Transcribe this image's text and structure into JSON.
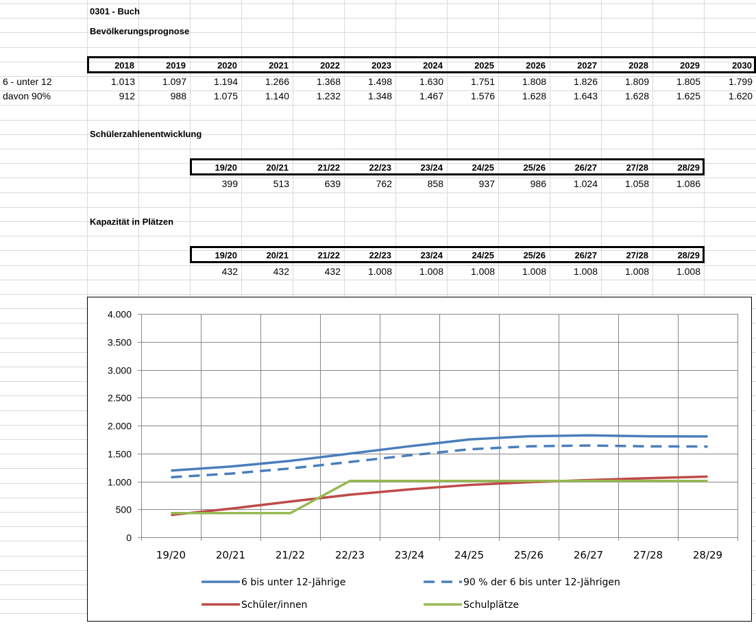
{
  "sheet": {
    "title": "0301 - Buch",
    "subtitle": "Bevölkerungsprognose",
    "population": {
      "years": [
        "2018",
        "2019",
        "2020",
        "2021",
        "2022",
        "2023",
        "2024",
        "2025",
        "2026",
        "2027",
        "2028",
        "2029",
        "2030"
      ],
      "rows": [
        {
          "label": "6 - unter  12",
          "values": [
            "1.013",
            "1.097",
            "1.194",
            "1.266",
            "1.368",
            "1.498",
            "1.630",
            "1.751",
            "1.808",
            "1.826",
            "1.809",
            "1.805",
            "1.799"
          ]
        },
        {
          "label": "davon 90%",
          "values": [
            "912",
            "988",
            "1.075",
            "1.140",
            "1.232",
            "1.348",
            "1.467",
            "1.576",
            "1.628",
            "1.643",
            "1.628",
            "1.625",
            "1.620"
          ]
        }
      ]
    },
    "students": {
      "title": "Schülerzahlenentwicklung",
      "years": [
        "19/20",
        "20/21",
        "21/22",
        "22/23",
        "23/24",
        "24/25",
        "25/26",
        "26/27",
        "27/28",
        "28/29"
      ],
      "values": [
        "399",
        "513",
        "639",
        "762",
        "858",
        "937",
        "986",
        "1.024",
        "1.058",
        "1.086"
      ]
    },
    "capacity": {
      "title": "Kapazität in Plätzen",
      "years": [
        "19/20",
        "20/21",
        "21/22",
        "22/23",
        "23/24",
        "24/25",
        "25/26",
        "26/27",
        "27/28",
        "28/29"
      ],
      "values": [
        "432",
        "432",
        "432",
        "1.008",
        "1.008",
        "1.008",
        "1.008",
        "1.008",
        "1.008",
        "1.008"
      ]
    }
  },
  "chart_data": {
    "type": "line",
    "categories": [
      "19/20",
      "20/21",
      "21/22",
      "22/23",
      "23/24",
      "24/25",
      "25/26",
      "26/27",
      "27/28",
      "28/29"
    ],
    "ylim": [
      0,
      4000
    ],
    "yticks": [
      0,
      500,
      1000,
      1500,
      2000,
      2500,
      3000,
      3500,
      4000
    ],
    "ytick_labels": [
      "0",
      "500",
      "1.000",
      "1.500",
      "2.000",
      "2.500",
      "3.000",
      "3.500",
      "4.000"
    ],
    "grid": true,
    "legend_position": "bottom",
    "series": [
      {
        "name": "6 bis unter 12-Jährige",
        "color": "#4a7ebb",
        "dash": "solid",
        "values": [
          1194,
          1266,
          1368,
          1498,
          1630,
          1751,
          1808,
          1826,
          1809,
          1805
        ]
      },
      {
        "name": "90 % der 6 bis unter 12-Jährigen",
        "color": "#4a7ebb",
        "dash": "dashed",
        "values": [
          1075,
          1140,
          1232,
          1348,
          1467,
          1576,
          1628,
          1643,
          1628,
          1625
        ]
      },
      {
        "name": "Schüler/innen",
        "color": "#be4b48",
        "dash": "solid",
        "values": [
          399,
          513,
          639,
          762,
          858,
          937,
          986,
          1024,
          1058,
          1086
        ]
      },
      {
        "name": "Schulplätze",
        "color": "#98b954",
        "dash": "solid",
        "values": [
          432,
          432,
          432,
          1008,
          1008,
          1008,
          1008,
          1008,
          1008,
          1008
        ]
      }
    ]
  }
}
